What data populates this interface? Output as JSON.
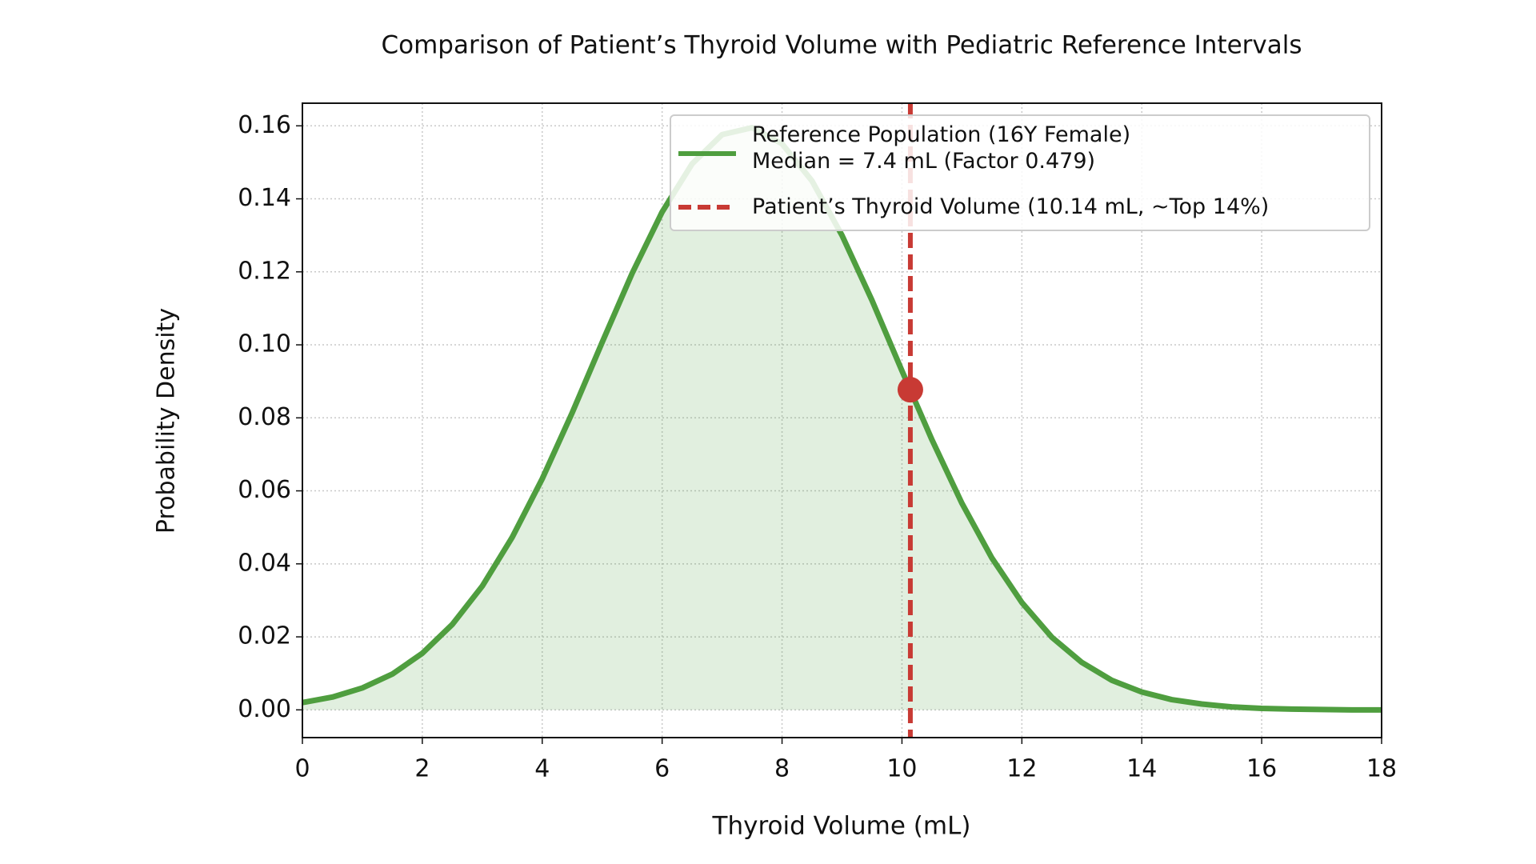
{
  "chart_data": {
    "type": "line",
    "title": "Comparison of Patient’s Thyroid Volume with Pediatric Reference Intervals",
    "x_label": "Thyroid Volume (mL)",
    "y_label": "Probability Density",
    "xlim": [
      0,
      18
    ],
    "ylim": [
      -0.0076,
      0.1662
    ],
    "xticks": [
      0,
      2,
      4,
      6,
      8,
      10,
      12,
      14,
      16,
      18
    ],
    "yticks": [
      {
        "value": 0,
        "label": "0.00"
      },
      0.02,
      0.04,
      0.06,
      0.08,
      {
        "value": 0.1,
        "label": "0.10"
      },
      0.12,
      0.14,
      0.16
    ],
    "grid": true,
    "legend": "upper right",
    "x": [
      0,
      0.5,
      1,
      1.5,
      2,
      2.5,
      3,
      3.5,
      4,
      4.5,
      5,
      5.5,
      6,
      6.5,
      7,
      7.5,
      8,
      8.5,
      9,
      9.5,
      10,
      10.5,
      11,
      11.5,
      12,
      12.5,
      13,
      13.5,
      14,
      14.5,
      15,
      15.5,
      16,
      16.5,
      17,
      17.5,
      18
    ],
    "series": [
      {
        "name": "Reference Population (16Y Female)\nMedian = 7.4 mL (Factor 0.479)",
        "color": "#4f9e3f",
        "fill": true,
        "values": [
          0.002,
          0.0035,
          0.006,
          0.0098,
          0.0155,
          0.0234,
          0.0339,
          0.0473,
          0.0633,
          0.0814,
          0.1007,
          0.1196,
          0.1364,
          0.1496,
          0.1576,
          0.1595,
          0.1551,
          0.1449,
          0.13,
          0.1122,
          0.0929,
          0.074,
          0.0566,
          0.0416,
          0.0294,
          0.0199,
          0.013,
          0.0081,
          0.0049,
          0.0028,
          0.0016,
          0.0008,
          0.0004,
          0.0002,
          0.0001,
          0,
          0
        ]
      }
    ],
    "markers": [
      {
        "name": "Patient’s Thyroid Volume (10.14 mL, ~Top 14%)",
        "color": "#c83a34",
        "x": 10.14,
        "y": 0.0877
      }
    ]
  }
}
